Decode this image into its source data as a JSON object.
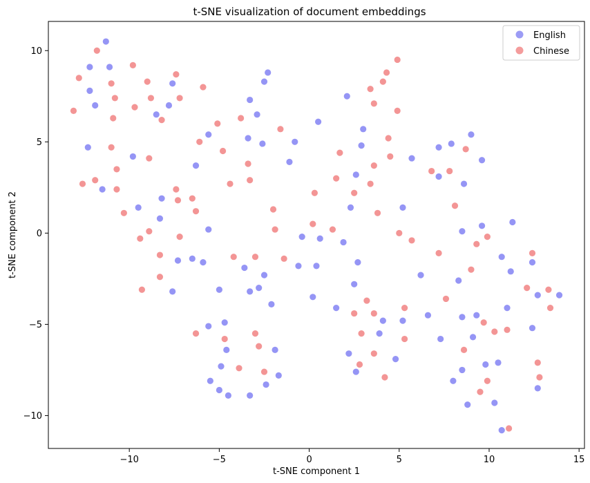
{
  "chart_data": {
    "type": "scatter",
    "title": "t-SNE visualization of document embeddings",
    "xlabel": "t-SNE component 1",
    "ylabel": "t-SNE component 2",
    "xlim": [
      -14.5,
      15.3
    ],
    "ylim": [
      -11.8,
      11.6
    ],
    "xticks": [
      -10,
      -5,
      0,
      5,
      10,
      15
    ],
    "yticks": [
      -10,
      -5,
      0,
      5,
      10
    ],
    "xtick_labels": [
      "−10",
      "−5",
      "0",
      "5",
      "10",
      "15"
    ],
    "ytick_labels": [
      "−10",
      "−5",
      "0",
      "5",
      "10"
    ],
    "grid": false,
    "legend_position": "top-right",
    "series": [
      {
        "name": "English",
        "color": "#7b7bf2",
        "points": [
          [
            -11.3,
            10.5
          ],
          [
            -12.2,
            9.1
          ],
          [
            -11.1,
            9.1
          ],
          [
            -12.2,
            7.8
          ],
          [
            -11.9,
            7.0
          ],
          [
            -8.5,
            6.5
          ],
          [
            -7.8,
            7.0
          ],
          [
            -7.6,
            8.2
          ],
          [
            -12.3,
            4.7
          ],
          [
            -9.8,
            4.2
          ],
          [
            -11.5,
            2.4
          ],
          [
            -9.5,
            1.4
          ],
          [
            -8.2,
            1.9
          ],
          [
            -8.3,
            0.8
          ],
          [
            -7.3,
            -1.5
          ],
          [
            -7.6,
            -3.2
          ],
          [
            -6.5,
            -1.4
          ],
          [
            -5.9,
            -1.6
          ],
          [
            -5.6,
            0.2
          ],
          [
            -6.3,
            3.7
          ],
          [
            -5.6,
            5.4
          ],
          [
            -3.3,
            7.3
          ],
          [
            -2.3,
            8.8
          ],
          [
            -2.5,
            8.3
          ],
          [
            -2.9,
            6.5
          ],
          [
            -3.4,
            5.2
          ],
          [
            -2.6,
            4.9
          ],
          [
            -0.8,
            5.0
          ],
          [
            -1.1,
            3.9
          ],
          [
            0.5,
            6.1
          ],
          [
            2.1,
            7.5
          ],
          [
            3.0,
            5.7
          ],
          [
            2.9,
            4.8
          ],
          [
            2.6,
            3.2
          ],
          [
            2.3,
            1.4
          ],
          [
            1.9,
            -0.5
          ],
          [
            0.6,
            -0.3
          ],
          [
            -0.4,
            -0.2
          ],
          [
            0.4,
            -1.8
          ],
          [
            -0.6,
            -1.8
          ],
          [
            -3.6,
            -1.9
          ],
          [
            -2.5,
            -2.3
          ],
          [
            -2.8,
            -3.0
          ],
          [
            -3.3,
            -3.2
          ],
          [
            -5.0,
            -3.1
          ],
          [
            -2.1,
            -3.9
          ],
          [
            0.2,
            -3.5
          ],
          [
            1.5,
            -4.1
          ],
          [
            2.5,
            -2.8
          ],
          [
            2.7,
            -1.6
          ],
          [
            -5.6,
            -5.1
          ],
          [
            -4.7,
            -4.9
          ],
          [
            -4.6,
            -6.4
          ],
          [
            -4.9,
            -7.3
          ],
          [
            -5.5,
            -8.1
          ],
          [
            -5.0,
            -8.6
          ],
          [
            -4.5,
            -8.9
          ],
          [
            -3.3,
            -8.9
          ],
          [
            -2.4,
            -8.3
          ],
          [
            -1.7,
            -7.8
          ],
          [
            -1.9,
            -6.4
          ],
          [
            2.2,
            -6.6
          ],
          [
            2.6,
            -7.6
          ],
          [
            4.1,
            -4.8
          ],
          [
            3.9,
            -5.5
          ],
          [
            4.8,
            -6.9
          ],
          [
            5.2,
            -4.8
          ],
          [
            5.2,
            1.4
          ],
          [
            5.7,
            4.1
          ],
          [
            6.2,
            -2.3
          ],
          [
            6.6,
            -4.5
          ],
          [
            7.2,
            4.7
          ],
          [
            7.2,
            3.1
          ],
          [
            7.9,
            4.9
          ],
          [
            8.6,
            2.7
          ],
          [
            9.0,
            5.4
          ],
          [
            9.6,
            4.0
          ],
          [
            8.5,
            0.1
          ],
          [
            9.6,
            0.4
          ],
          [
            11.3,
            0.6
          ],
          [
            8.3,
            -2.6
          ],
          [
            10.7,
            -1.3
          ],
          [
            11.2,
            -2.1
          ],
          [
            7.3,
            -5.8
          ],
          [
            8.5,
            -4.6
          ],
          [
            9.1,
            -5.7
          ],
          [
            9.3,
            -4.5
          ],
          [
            11.0,
            -4.1
          ],
          [
            12.4,
            -1.6
          ],
          [
            12.7,
            -3.4
          ],
          [
            13.9,
            -3.4
          ],
          [
            12.4,
            -5.2
          ],
          [
            8.0,
            -8.1
          ],
          [
            8.5,
            -7.5
          ],
          [
            9.8,
            -7.2
          ],
          [
            10.5,
            -7.1
          ],
          [
            8.8,
            -9.4
          ],
          [
            10.3,
            -9.3
          ],
          [
            12.7,
            -8.5
          ],
          [
            10.7,
            -10.8
          ]
        ]
      },
      {
        "name": "Chinese",
        "color": "#f07b7b",
        "points": [
          [
            -13.1,
            6.7
          ],
          [
            -12.8,
            8.5
          ],
          [
            -11.8,
            10.0
          ],
          [
            -11.0,
            8.2
          ],
          [
            -10.8,
            7.4
          ],
          [
            -10.9,
            6.3
          ],
          [
            -11.0,
            4.7
          ],
          [
            -10.7,
            3.5
          ],
          [
            -10.7,
            2.4
          ],
          [
            -12.6,
            2.7
          ],
          [
            -11.9,
            2.9
          ],
          [
            -10.3,
            1.1
          ],
          [
            -9.8,
            9.2
          ],
          [
            -9.0,
            8.3
          ],
          [
            -8.8,
            7.4
          ],
          [
            -9.7,
            6.9
          ],
          [
            -8.2,
            6.2
          ],
          [
            -7.4,
            8.7
          ],
          [
            -7.2,
            7.4
          ],
          [
            -5.9,
            8.0
          ],
          [
            -8.9,
            4.1
          ],
          [
            -9.4,
            -0.3
          ],
          [
            -8.9,
            0.1
          ],
          [
            -8.3,
            -1.2
          ],
          [
            -8.3,
            -2.4
          ],
          [
            -9.3,
            -3.1
          ],
          [
            -7.4,
            2.4
          ],
          [
            -7.3,
            1.8
          ],
          [
            -7.2,
            -0.2
          ],
          [
            -6.5,
            1.9
          ],
          [
            -6.3,
            1.2
          ],
          [
            -6.1,
            5.0
          ],
          [
            -5.1,
            6.0
          ],
          [
            -4.8,
            4.5
          ],
          [
            -4.4,
            2.7
          ],
          [
            -3.8,
            6.3
          ],
          [
            -3.4,
            3.8
          ],
          [
            -3.3,
            2.9
          ],
          [
            -1.6,
            5.7
          ],
          [
            -2.0,
            1.3
          ],
          [
            -1.9,
            0.2
          ],
          [
            -4.2,
            -1.3
          ],
          [
            -3.0,
            -1.3
          ],
          [
            -1.4,
            -1.4
          ],
          [
            0.2,
            0.5
          ],
          [
            0.3,
            2.2
          ],
          [
            1.5,
            3.0
          ],
          [
            1.7,
            4.4
          ],
          [
            1.3,
            0.2
          ],
          [
            2.5,
            2.2
          ],
          [
            3.4,
            2.7
          ],
          [
            3.6,
            3.7
          ],
          [
            3.8,
            1.1
          ],
          [
            3.4,
            7.9
          ],
          [
            3.6,
            7.1
          ],
          [
            4.1,
            8.3
          ],
          [
            4.3,
            8.8
          ],
          [
            4.9,
            9.5
          ],
          [
            4.9,
            6.7
          ],
          [
            4.4,
            5.2
          ],
          [
            4.5,
            4.2
          ],
          [
            5.0,
            0.0
          ],
          [
            5.7,
            -0.4
          ],
          [
            3.2,
            -3.7
          ],
          [
            2.5,
            -4.4
          ],
          [
            3.6,
            -4.4
          ],
          [
            5.3,
            -4.1
          ],
          [
            5.3,
            -5.8
          ],
          [
            2.9,
            -5.5
          ],
          [
            3.6,
            -6.6
          ],
          [
            2.8,
            -7.2
          ],
          [
            4.2,
            -7.9
          ],
          [
            -6.3,
            -5.5
          ],
          [
            -4.7,
            -5.8
          ],
          [
            -3.0,
            -5.5
          ],
          [
            -2.8,
            -6.2
          ],
          [
            -3.9,
            -7.4
          ],
          [
            -2.5,
            -7.6
          ],
          [
            6.8,
            3.4
          ],
          [
            7.8,
            3.4
          ],
          [
            8.1,
            1.5
          ],
          [
            8.7,
            4.6
          ],
          [
            7.2,
            -1.1
          ],
          [
            7.6,
            -3.6
          ],
          [
            9.0,
            -2.0
          ],
          [
            9.3,
            -0.6
          ],
          [
            9.9,
            -0.2
          ],
          [
            9.7,
            -4.9
          ],
          [
            10.3,
            -5.4
          ],
          [
            11.0,
            -5.3
          ],
          [
            8.6,
            -6.4
          ],
          [
            9.5,
            -8.7
          ],
          [
            9.9,
            -8.1
          ],
          [
            12.1,
            -3.0
          ],
          [
            12.4,
            -1.1
          ],
          [
            13.3,
            -3.1
          ],
          [
            13.4,
            -4.1
          ],
          [
            12.7,
            -7.1
          ],
          [
            12.8,
            -7.9
          ],
          [
            11.1,
            -10.7
          ]
        ]
      }
    ]
  }
}
